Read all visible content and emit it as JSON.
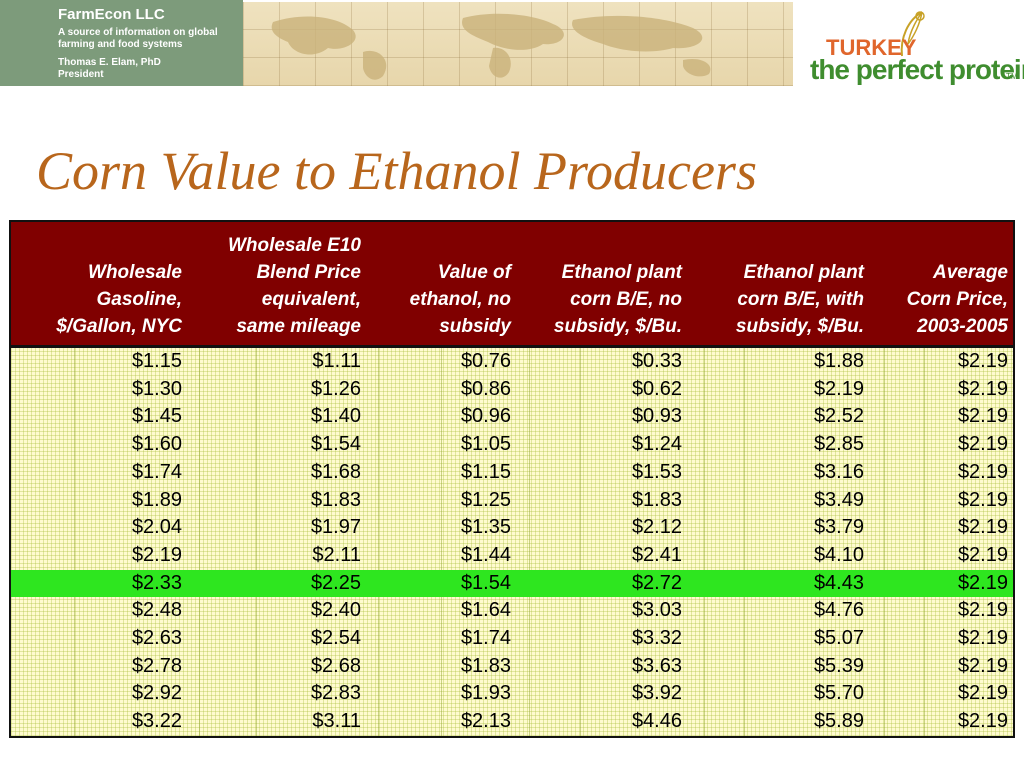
{
  "header": {
    "company": "FarmEcon LLC",
    "tagline": "A source of information on global farming and food systems",
    "person": "Thomas E. Elam, PhD",
    "role": "President",
    "logo_top": "TURKEY",
    "logo_bottom": "the perfect protein",
    "logo_tm": "TM"
  },
  "colors": {
    "title": "#b8661c",
    "header_bg": "#800000",
    "table_bg": "#fffbcf",
    "highlight": "#2ee61f",
    "green_panel": "#7d9b7b"
  },
  "title": "Corn Value to Ethanol Producers",
  "table": {
    "columns": [
      [
        "Wholesale",
        "Gasoline,",
        "$/Gallon, NYC"
      ],
      [
        "Wholesale E10",
        "Blend Price",
        "equivalent,",
        "same mileage"
      ],
      [
        "Value of",
        "ethanol, no",
        "subsidy"
      ],
      [
        "Ethanol plant",
        "corn B/E, no",
        "subsidy, $/Bu."
      ],
      [
        "Ethanol plant",
        "corn B/E, with",
        "subsidy, $/Bu."
      ],
      [
        "Average",
        "Corn Price,",
        "2003-2005"
      ]
    ],
    "highlight_row": 8,
    "rows": [
      [
        "$1.15",
        "$1.11",
        "$0.76",
        "$0.33",
        "$1.88",
        "$2.19"
      ],
      [
        "$1.30",
        "$1.26",
        "$0.86",
        "$0.62",
        "$2.19",
        "$2.19"
      ],
      [
        "$1.45",
        "$1.40",
        "$0.96",
        "$0.93",
        "$2.52",
        "$2.19"
      ],
      [
        "$1.60",
        "$1.54",
        "$1.05",
        "$1.24",
        "$2.85",
        "$2.19"
      ],
      [
        "$1.74",
        "$1.68",
        "$1.15",
        "$1.53",
        "$3.16",
        "$2.19"
      ],
      [
        "$1.89",
        "$1.83",
        "$1.25",
        "$1.83",
        "$3.49",
        "$2.19"
      ],
      [
        "$2.04",
        "$1.97",
        "$1.35",
        "$2.12",
        "$3.79",
        "$2.19"
      ],
      [
        "$2.19",
        "$2.11",
        "$1.44",
        "$2.41",
        "$4.10",
        "$2.19"
      ],
      [
        "$2.33",
        "$2.25",
        "$1.54",
        "$2.72",
        "$4.43",
        "$2.19"
      ],
      [
        "$2.48",
        "$2.40",
        "$1.64",
        "$3.03",
        "$4.76",
        "$2.19"
      ],
      [
        "$2.63",
        "$2.54",
        "$1.74",
        "$3.32",
        "$5.07",
        "$2.19"
      ],
      [
        "$2.78",
        "$2.68",
        "$1.83",
        "$3.63",
        "$5.39",
        "$2.19"
      ],
      [
        "$2.92",
        "$2.83",
        "$1.93",
        "$3.92",
        "$5.70",
        "$2.19"
      ],
      [
        "$3.22",
        "$3.11",
        "$2.13",
        "$4.46",
        "$5.89",
        "$2.19"
      ]
    ]
  }
}
